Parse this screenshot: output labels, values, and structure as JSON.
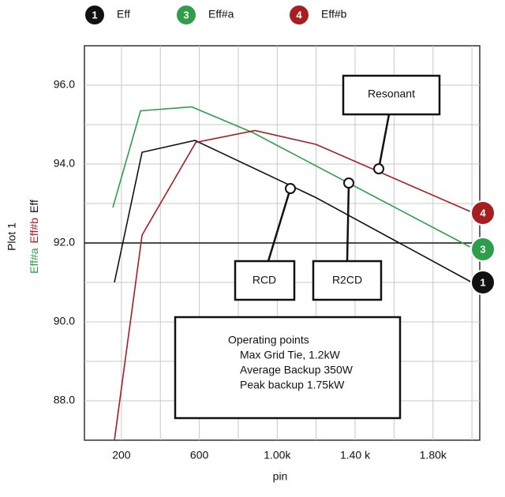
{
  "chart_data": {
    "type": "line",
    "x_label": "pin",
    "y_label": "Plot 1",
    "xlim": [
      10,
      2040
    ],
    "ylim": [
      87,
      97
    ],
    "xticks": [
      {
        "value": 200,
        "label": "200"
      },
      {
        "value": 600,
        "label": "600"
      },
      {
        "value": 1000,
        "label": "1.00k"
      },
      {
        "value": 1400,
        "label": "1.40 k"
      },
      {
        "value": 1800,
        "label": "1.80k"
      }
    ],
    "yticks": [
      {
        "value": 88,
        "label": "88.0"
      },
      {
        "value": 90,
        "label": "90.0"
      },
      {
        "value": 92,
        "label": "92.0"
      },
      {
        "value": 94,
        "label": "94.0"
      },
      {
        "value": 96,
        "label": "96.0"
      }
    ],
    "x_minor_grid": [
      400,
      800,
      1200,
      1600,
      2000
    ],
    "y_minor_grid": [
      89,
      91,
      93,
      95
    ],
    "reference_line": 92,
    "grid": true,
    "series": [
      {
        "name": "Eff",
        "badge": "1",
        "color": "#111111",
        "x": [
          164,
          306,
          578,
          1199,
          2000
        ],
        "values": [
          91.0,
          94.3,
          94.6,
          93.15,
          91.0
        ]
      },
      {
        "name": "Eff#a",
        "badge": "3",
        "color": "#2e9e4a",
        "x": [
          156,
          298,
          561,
          874,
          1990
        ],
        "values": [
          92.9,
          95.35,
          95.45,
          94.8,
          91.9
        ]
      },
      {
        "name": "Eff#b",
        "badge": "4",
        "color": "#a41e22",
        "x": [
          164,
          306,
          582,
          886,
          1199,
          1990
        ],
        "values": [
          87.0,
          92.2,
          94.55,
          94.85,
          94.5,
          92.8
        ]
      }
    ],
    "annotations": {
      "resonant": "Resonant",
      "rcd": "RCD",
      "r2cd": "R2CD",
      "operating_points": [
        "Operating points",
        "Max Grid Tie, 1.2kW",
        "Average Backup 350W",
        "Peak backup 1.75kW"
      ]
    }
  }
}
